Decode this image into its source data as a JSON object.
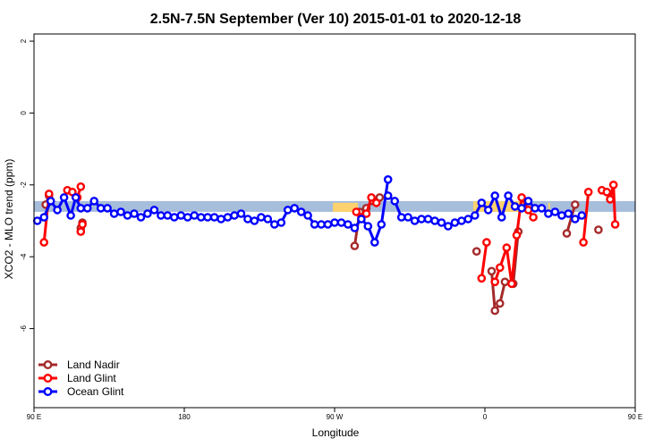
{
  "chart_data": {
    "type": "line",
    "title": "2.5N-7.5N September (Ver 10)   2015-01-01 to 2020-12-18",
    "xlabel": "Longitude",
    "ylabel": "XCO2 - MLO trend (ppm)",
    "xlim": [
      90,
      450
    ],
    "ylim": [
      -8.2,
      2.2
    ],
    "x_ticks": [
      {
        "value": 90,
        "label": "90 E"
      },
      {
        "value": 180,
        "label": "180"
      },
      {
        "value": 270,
        "label": "90 W"
      },
      {
        "value": 360,
        "label": "0"
      },
      {
        "value": 450,
        "label": "90 E"
      }
    ],
    "y_ticks": [
      {
        "value": 2,
        "label": "2"
      },
      {
        "value": 0,
        "label": "0"
      },
      {
        "value": -2,
        "label": "-2"
      },
      {
        "value": -4,
        "label": "-4"
      },
      {
        "value": -6,
        "label": "-6"
      }
    ],
    "grid": false,
    "legend_position": "bottom-left",
    "bands": [
      {
        "name": "model-band",
        "color": "#a6bddb",
        "x": [
          90,
          450
        ],
        "y": [
          -2.45,
          -2.75
        ]
      }
    ],
    "highlights": [
      {
        "color": "#fdd26e",
        "x": [
          269,
          284
        ],
        "y": [
          -2.5,
          -2.75
        ]
      },
      {
        "color": "#fdd26e",
        "x": [
          353,
          388
        ],
        "y": [
          -2.45,
          -2.75
        ]
      },
      {
        "color": "#fdd26e",
        "x": [
          398,
          399
        ],
        "y": [
          -2.5,
          -2.7
        ]
      }
    ],
    "series": [
      {
        "name": "Land Nadir",
        "color": "#a52a2a",
        "segments": [
          [
            [
              97,
              -2.55
            ],
            [
              99,
              -2.3
            ]
          ],
          [
            [
              118,
              -3.2
            ],
            [
              119,
              -3.05
            ]
          ],
          [
            [
              282,
              -3.7
            ],
            [
              285,
              -2.75
            ],
            [
              289,
              -2.65
            ],
            [
              293,
              -2.45
            ],
            [
              297,
              -2.35
            ]
          ],
          [
            [
              355,
              -3.85
            ]
          ],
          [
            [
              364,
              -4.4
            ],
            [
              366,
              -5.5
            ],
            [
              369,
              -5.3
            ],
            [
              372,
              -4.7
            ],
            [
              377,
              -4.75
            ],
            [
              380,
              -3.3
            ]
          ],
          [
            [
              409,
              -3.35
            ],
            [
              414,
              -2.55
            ]
          ],
          [
            [
              428,
              -3.25
            ]
          ]
        ]
      },
      {
        "name": "Land Glint",
        "color": "#ff0000",
        "segments": [
          [
            [
              96,
              -3.6
            ],
            [
              99,
              -2.25
            ]
          ],
          [
            [
              110,
              -2.15
            ],
            [
              113,
              -2.2
            ],
            [
              116,
              -2.35
            ],
            [
              118,
              -2.05
            ]
          ],
          [
            [
              118,
              -3.3
            ],
            [
              119,
              -3.1
            ]
          ],
          [
            [
              283,
              -2.75
            ],
            [
              286,
              -2.9
            ],
            [
              289,
              -2.8
            ],
            [
              292,
              -2.35
            ],
            [
              295,
              -2.5
            ]
          ],
          [
            [
              358,
              -4.6
            ],
            [
              361,
              -3.6
            ]
          ],
          [
            [
              366,
              -4.7
            ],
            [
              369,
              -4.3
            ],
            [
              373,
              -3.75
            ],
            [
              376,
              -4.75
            ],
            [
              379,
              -3.4
            ],
            [
              382,
              -2.35
            ],
            [
              386,
              -2.7
            ],
            [
              389,
              -2.9
            ]
          ],
          [
            [
              419,
              -3.6
            ],
            [
              422,
              -2.2
            ]
          ],
          [
            [
              430,
              -2.15
            ],
            [
              433,
              -2.2
            ],
            [
              435,
              -2.4
            ],
            [
              437,
              -2.0
            ],
            [
              438,
              -3.1
            ]
          ]
        ]
      },
      {
        "name": "Ocean Glint",
        "color": "#0000ff",
        "segments": [
          [
            [
              92,
              -3.0
            ],
            [
              96,
              -2.9
            ],
            [
              100,
              -2.45
            ],
            [
              104,
              -2.7
            ],
            [
              108,
              -2.35
            ],
            [
              112,
              -2.85
            ],
            [
              115,
              -2.35
            ],
            [
              118,
              -2.65
            ],
            [
              122,
              -2.65
            ],
            [
              126,
              -2.45
            ],
            [
              130,
              -2.65
            ],
            [
              134,
              -2.65
            ],
            [
              138,
              -2.8
            ],
            [
              142,
              -2.75
            ],
            [
              146,
              -2.85
            ],
            [
              150,
              -2.8
            ],
            [
              154,
              -2.9
            ],
            [
              158,
              -2.8
            ],
            [
              162,
              -2.7
            ],
            [
              166,
              -2.85
            ],
            [
              170,
              -2.85
            ],
            [
              174,
              -2.9
            ],
            [
              178,
              -2.85
            ],
            [
              182,
              -2.9
            ],
            [
              186,
              -2.85
            ],
            [
              190,
              -2.9
            ],
            [
              194,
              -2.9
            ],
            [
              198,
              -2.9
            ],
            [
              202,
              -2.95
            ],
            [
              206,
              -2.9
            ],
            [
              210,
              -2.85
            ],
            [
              214,
              -2.8
            ],
            [
              218,
              -2.95
            ],
            [
              222,
              -3.0
            ],
            [
              226,
              -2.9
            ],
            [
              230,
              -2.95
            ],
            [
              234,
              -3.1
            ],
            [
              238,
              -3.05
            ],
            [
              242,
              -2.7
            ],
            [
              246,
              -2.65
            ],
            [
              250,
              -2.75
            ],
            [
              254,
              -2.85
            ],
            [
              258,
              -3.1
            ],
            [
              262,
              -3.1
            ],
            [
              266,
              -3.1
            ],
            [
              270,
              -3.05
            ],
            [
              274,
              -3.05
            ],
            [
              278,
              -3.1
            ],
            [
              282,
              -3.2
            ],
            [
              286,
              -2.95
            ],
            [
              290,
              -3.15
            ],
            [
              294,
              -3.6
            ],
            [
              298,
              -3.1
            ],
            [
              302,
              -1.85
            ]
          ],
          [
            [
              302,
              -2.3
            ],
            [
              306,
              -2.45
            ],
            [
              310,
              -2.9
            ],
            [
              314,
              -2.9
            ],
            [
              318,
              -3.0
            ],
            [
              322,
              -2.95
            ],
            [
              326,
              -2.95
            ],
            [
              330,
              -3.0
            ],
            [
              334,
              -3.05
            ],
            [
              338,
              -3.15
            ],
            [
              342,
              -3.05
            ],
            [
              346,
              -3.0
            ],
            [
              350,
              -2.95
            ],
            [
              354,
              -2.85
            ],
            [
              358,
              -2.5
            ],
            [
              362,
              -2.7
            ],
            [
              366,
              -2.3
            ],
            [
              370,
              -2.9
            ],
            [
              374,
              -2.3
            ],
            [
              378,
              -2.6
            ],
            [
              382,
              -2.65
            ],
            [
              386,
              -2.45
            ],
            [
              390,
              -2.65
            ],
            [
              394,
              -2.65
            ],
            [
              398,
              -2.8
            ],
            [
              402,
              -2.75
            ],
            [
              406,
              -2.85
            ],
            [
              410,
              -2.8
            ],
            [
              414,
              -2.95
            ],
            [
              418,
              -2.85
            ]
          ]
        ]
      }
    ]
  }
}
